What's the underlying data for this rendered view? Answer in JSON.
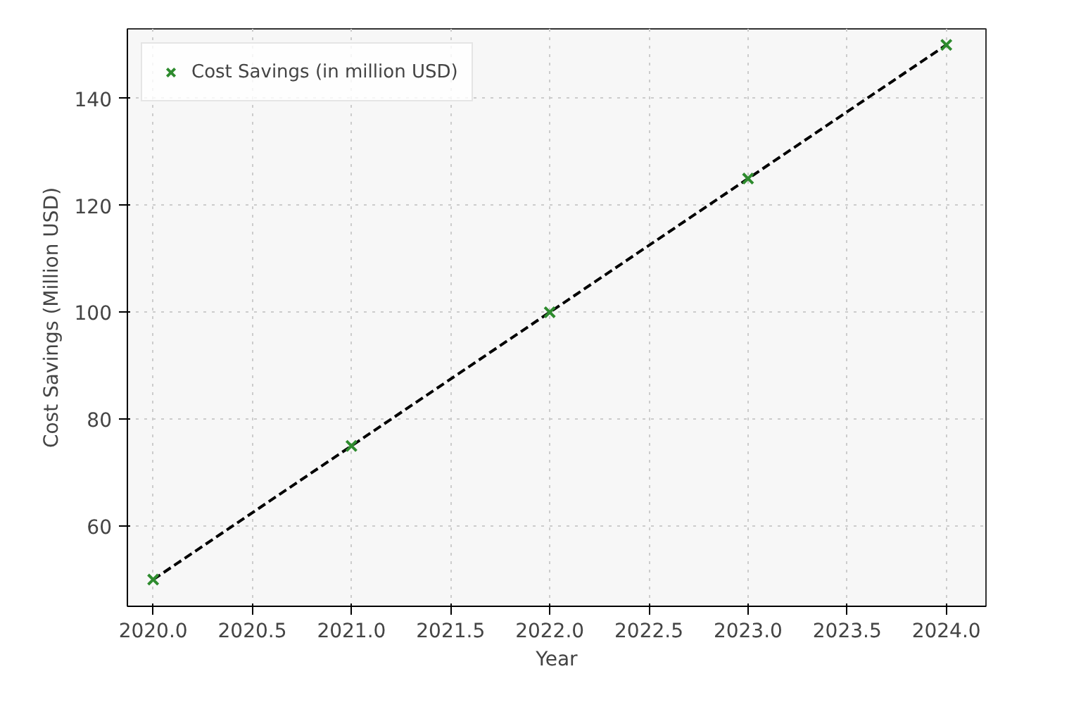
{
  "chart_data": {
    "type": "scatter",
    "xlabel": "Year",
    "ylabel": "Cost Savings (Million USD)",
    "x": [
      2020,
      2021,
      2022,
      2023,
      2024
    ],
    "series": [
      {
        "type": "line",
        "color": "#000000",
        "line_style": "dashed",
        "marker": "none",
        "values": [
          50,
          75,
          100,
          125,
          150
        ]
      },
      {
        "name": "Cost Savings (in million USD)",
        "color": "#2e8b2e",
        "marker": "cross",
        "values": [
          50,
          75,
          100,
          125,
          150
        ]
      }
    ],
    "xlim": [
      2019.87,
      2024.2
    ],
    "ylim": [
      45,
      153
    ],
    "xticks": [
      {
        "value": 2020,
        "label": "2020.0"
      },
      {
        "value": 2020.5,
        "label": "2020.5"
      },
      {
        "value": 2021,
        "label": "2021.0"
      },
      {
        "value": 2021.5,
        "label": "2021.5"
      },
      {
        "value": 2022,
        "label": "2022.0"
      },
      {
        "value": 2022.5,
        "label": "2022.5"
      },
      {
        "value": 2023,
        "label": "2023.0"
      },
      {
        "value": 2023.5,
        "label": "2023.5"
      },
      {
        "value": 2024,
        "label": "2024.0"
      }
    ],
    "yticks": [
      60,
      80,
      100,
      120,
      140
    ],
    "grid": true,
    "legend": "top left"
  }
}
